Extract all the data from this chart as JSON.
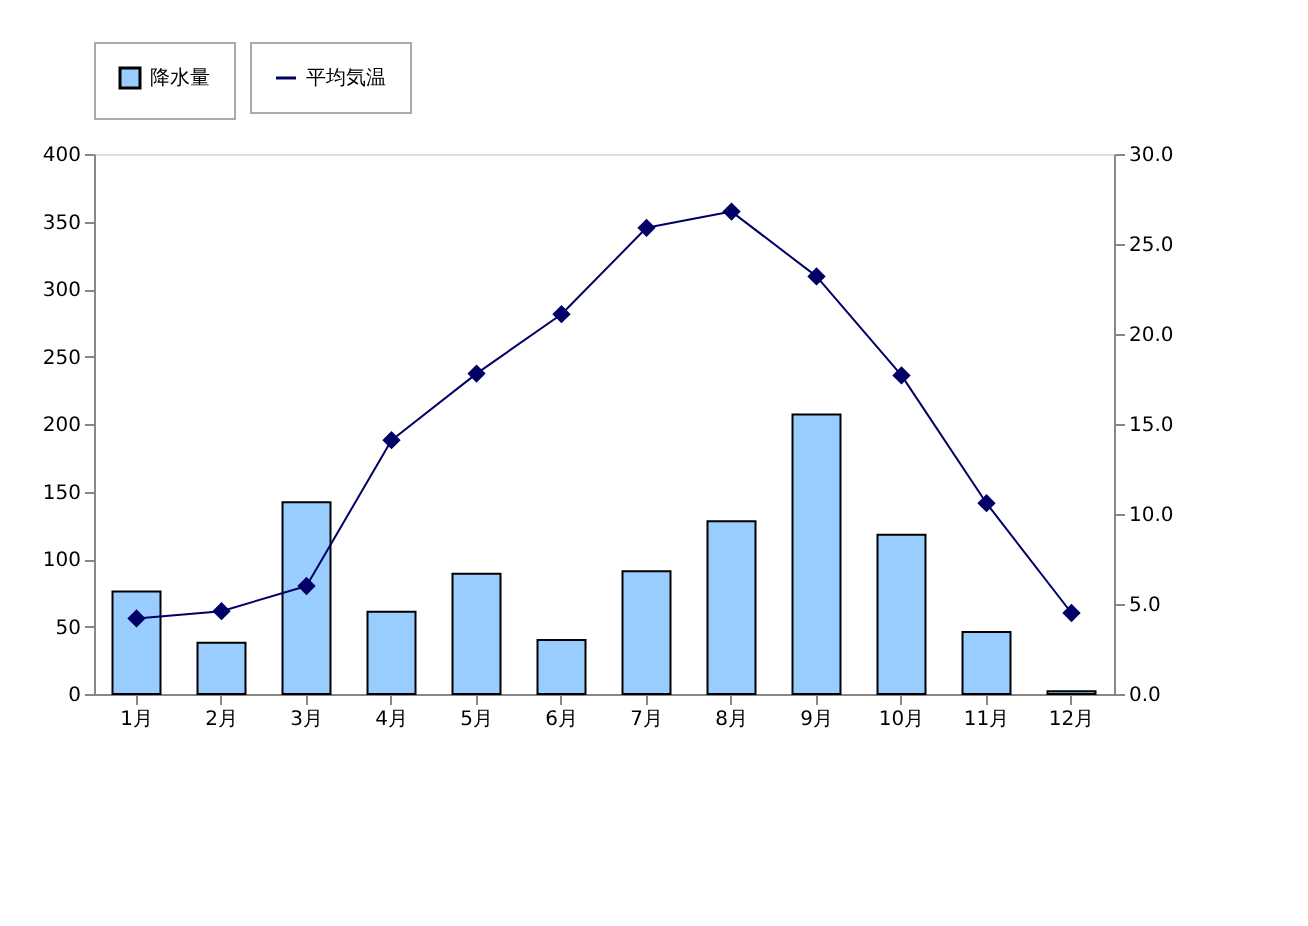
{
  "chart_data": {
    "type": "bar",
    "categories": [
      "1月",
      "2月",
      "3月",
      "4月",
      "5月",
      "6月",
      "7月",
      "8月",
      "9月",
      "10月",
      "11月",
      "12月"
    ],
    "series": [
      {
        "name": "降水量",
        "color": "#99ccff",
        "values": [
          76,
          38,
          142,
          61,
          89,
          40,
          91,
          128,
          207,
          118,
          46,
          2
        ]
      },
      {
        "name": "平均気温",
        "type": "line",
        "axis": "y2",
        "color": "#000066",
        "marker": "diamond",
        "values": [
          4.2,
          4.6,
          6.0,
          14.1,
          17.8,
          21.1,
          25.9,
          26.8,
          23.2,
          17.7,
          10.6,
          4.5
        ]
      }
    ],
    "ylim": [
      0,
      400
    ],
    "yticks": [
      0,
      50,
      100,
      150,
      200,
      250,
      300,
      350,
      400
    ],
    "y2lim": [
      0,
      30
    ],
    "y2ticks": [
      {
        "value": 0,
        "label": "0.0"
      },
      {
        "value": 5,
        "label": "5.0"
      },
      {
        "value": 10,
        "label": "10.0"
      },
      {
        "value": 15,
        "label": "15.0"
      },
      {
        "value": 20,
        "label": "20.0"
      },
      {
        "value": 25,
        "label": "25.0"
      },
      {
        "value": 30,
        "label": "30.0"
      }
    ],
    "grid": false,
    "legend": "top"
  }
}
